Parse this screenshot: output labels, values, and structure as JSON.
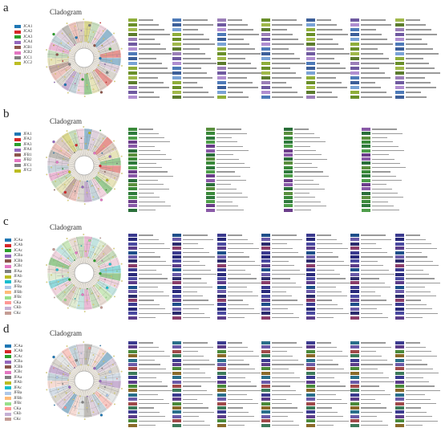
{
  "panels": [
    {
      "letter": "a",
      "title": "Cladogram",
      "groups": [
        {
          "label": "JCA1",
          "color": "#1f77b4"
        },
        {
          "label": "JCA2",
          "color": "#d62728"
        },
        {
          "label": "JCA3",
          "color": "#2ca02c"
        },
        {
          "label": "JCA4",
          "color": "#9467bd"
        },
        {
          "label": "JCB1",
          "color": "#8c564b"
        },
        {
          "label": "JCB2",
          "color": "#e377c2"
        },
        {
          "label": "JCC1",
          "color": "#7f7f7f"
        },
        {
          "label": "JCC2",
          "color": "#bcbd22"
        }
      ],
      "taxa_columns": 7,
      "taxa_rows": 17,
      "taxa_colors": [
        "#8fae3a",
        "#6a8f2a",
        "#a0b84a",
        "#5c7c2d",
        "#9b7fb8",
        "#6f5aa0",
        "#b08ed0",
        "#4e7ab8",
        "#3d5f99",
        "#7aa3d6"
      ]
    },
    {
      "letter": "b",
      "title": "Cladogram",
      "groups": [
        {
          "label": "JFA1",
          "color": "#1f77b4"
        },
        {
          "label": "JFA2",
          "color": "#d62728"
        },
        {
          "label": "JFA3",
          "color": "#2ca02c"
        },
        {
          "label": "JFA4",
          "color": "#9467bd"
        },
        {
          "label": "JFB1",
          "color": "#8c564b"
        },
        {
          "label": "JFB2",
          "color": "#e377c2"
        },
        {
          "label": "JFC1",
          "color": "#7f7f7f"
        },
        {
          "label": "JFC2",
          "color": "#bcbd22"
        }
      ],
      "taxa_columns": 4,
      "taxa_rows": 20,
      "taxa_colors": [
        "#3a8a3a",
        "#2f7a3c",
        "#4e9e4a",
        "#6b3d8a",
        "#8a5aa8",
        "#2a6f3a",
        "#5a8f3e"
      ]
    },
    {
      "letter": "c",
      "title": "Cladogram",
      "groups": [
        {
          "label": "JCAa",
          "color": "#1f77b4"
        },
        {
          "label": "JCAb",
          "color": "#d62728"
        },
        {
          "label": "JCAc",
          "color": "#2ca02c"
        },
        {
          "label": "JCBa",
          "color": "#9467bd"
        },
        {
          "label": "JCBb",
          "color": "#8c564b"
        },
        {
          "label": "JCBc",
          "color": "#e377c2"
        },
        {
          "label": "JFAa",
          "color": "#7f7f7f"
        },
        {
          "label": "JFAb",
          "color": "#bcbd22"
        },
        {
          "label": "JFAc",
          "color": "#17becf"
        },
        {
          "label": "JFBa",
          "color": "#aec7e8"
        },
        {
          "label": "JFBb",
          "color": "#ffbb78"
        },
        {
          "label": "JFBc",
          "color": "#98df8a"
        },
        {
          "label": "CKa",
          "color": "#ff9896"
        },
        {
          "label": "CKb",
          "color": "#c5b0d5"
        },
        {
          "label": "CKc",
          "color": "#c49c94"
        }
      ],
      "taxa_columns": 7,
      "taxa_rows": 20,
      "taxa_colors": [
        "#3b3b8f",
        "#2a2a7a",
        "#4a4aa0",
        "#5c3d8a",
        "#1e4f8a",
        "#6a5aa8",
        "#2d2d6e",
        "#8a3d6a"
      ]
    },
    {
      "letter": "d",
      "title": "Cladogram",
      "groups": [
        {
          "label": "JCAa",
          "color": "#1f77b4"
        },
        {
          "label": "JCAb",
          "color": "#d62728"
        },
        {
          "label": "JCAc",
          "color": "#2ca02c"
        },
        {
          "label": "JCBa",
          "color": "#9467bd"
        },
        {
          "label": "JCBb",
          "color": "#8c564b"
        },
        {
          "label": "JCBc",
          "color": "#e377c2"
        },
        {
          "label": "JFAa",
          "color": "#7f7f7f"
        },
        {
          "label": "JFAb",
          "color": "#bcbd22"
        },
        {
          "label": "JFAc",
          "color": "#17becf"
        },
        {
          "label": "JFBa",
          "color": "#aec7e8"
        },
        {
          "label": "JFBb",
          "color": "#ffbb78"
        },
        {
          "label": "JFBc",
          "color": "#98df8a"
        },
        {
          "label": "CKa",
          "color": "#ff9896"
        },
        {
          "label": "CKb",
          "color": "#c5b0d5"
        },
        {
          "label": "CKc",
          "color": "#c49c94"
        }
      ],
      "taxa_columns": 7,
      "taxa_rows": 20,
      "taxa_colors": [
        "#3b3b8f",
        "#5c3d8a",
        "#4a8a3a",
        "#8a6a2a",
        "#2a6f8a",
        "#6a5aa8",
        "#a04a4a",
        "#3d7a5a"
      ]
    }
  ]
}
